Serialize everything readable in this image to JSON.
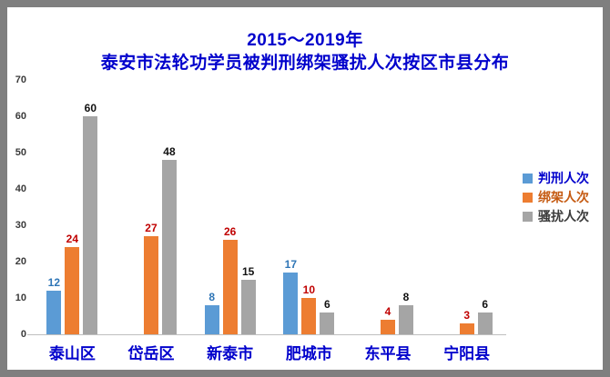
{
  "colors": {
    "frame_border": "#7f7f7f",
    "title_text": "#0000cc",
    "category_text": "#0000cc",
    "tick_text": "#3a3a3a",
    "axis_line": "#bfbfbf",
    "background": "#ffffff"
  },
  "chart_data": {
    "type": "bar",
    "title_lines": [
      "2015～2019年",
      "泰安市法轮功学员被判刑绑架骚扰人次按区市县分布"
    ],
    "categories": [
      "泰山区",
      "岱岳区",
      "新泰市",
      "肥城市",
      "东平县",
      "宁阳县"
    ],
    "series": [
      {
        "name": "判刑人次",
        "values": [
          12,
          0,
          8,
          17,
          0,
          0
        ],
        "bar_color": "#5b9bd5",
        "label_color": "#2e75b6",
        "legend_text_color": "#0000cc"
      },
      {
        "name": "绑架人次",
        "values": [
          24,
          27,
          26,
          10,
          4,
          3
        ],
        "bar_color": "#ed7d31",
        "label_color": "#c00000",
        "legend_text_color": "#c55a11"
      },
      {
        "name": "骚扰人次",
        "values": [
          60,
          48,
          15,
          6,
          8,
          6
        ],
        "bar_color": "#a5a5a5",
        "label_color": "#111111",
        "legend_text_color": "#3b3b3b"
      }
    ],
    "ylim": [
      0,
      70
    ],
    "yticks": [
      0,
      10,
      20,
      30,
      40,
      50,
      60,
      70
    ],
    "grid": false,
    "legend_position": "right",
    "data_labels": "value above each bar; no label or bar when value is 0",
    "xlabel": "",
    "ylabel": ""
  }
}
